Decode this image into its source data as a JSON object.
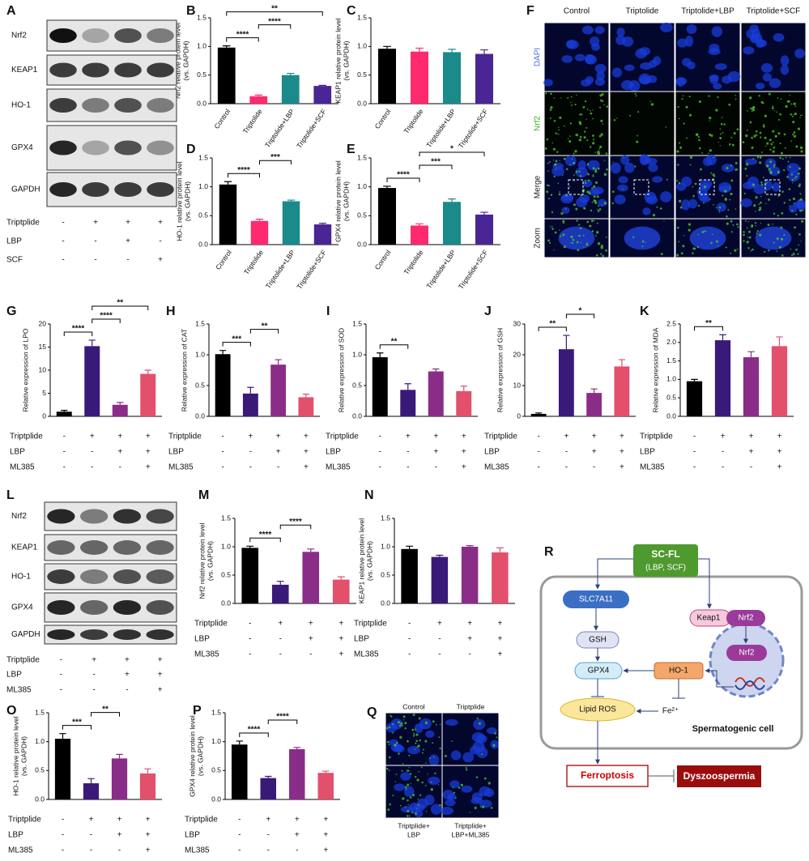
{
  "chart_data": [
    {
      "panel": "B",
      "type": "bar",
      "y_label": [
        "Nrf2 relative protein level",
        "(vs. GAPDH)"
      ],
      "categories": [
        "Control",
        "Triptolide",
        "Triptolide+LBP",
        "Triptolide+SCF"
      ],
      "values": [
        0.98,
        0.13,
        0.5,
        0.31
      ],
      "errors": [
        0.03,
        0.02,
        0.03,
        0.01
      ],
      "colors": [
        "#000000",
        "#ff2a6d",
        "#1b8a8a",
        "#4a2594"
      ],
      "ylim": [
        0,
        1.5
      ],
      "yticks": [
        {
          "value": 0,
          "label": "0.0"
        },
        0.5,
        {
          "value": 1,
          "label": "1.0"
        },
        1.5
      ],
      "significance": [
        {
          "between": [
            0,
            1
          ],
          "label": "****"
        },
        {
          "between": [
            1,
            2
          ],
          "label": "****"
        },
        {
          "between": [
            0,
            3
          ],
          "label": "**"
        }
      ]
    },
    {
      "panel": "C",
      "type": "bar",
      "y_label": [
        "KEAP1 relative protein level",
        "(vs. GAPDH)"
      ],
      "categories": [
        "Control",
        "Triptolide",
        "Triptolide+LBP",
        "Triptolide+SCF"
      ],
      "values": [
        0.96,
        0.91,
        0.9,
        0.87
      ],
      "errors": [
        0.04,
        0.06,
        0.05,
        0.07
      ],
      "colors": [
        "#000000",
        "#ff2a6d",
        "#1b8a8a",
        "#4a2594"
      ],
      "ylim": [
        0,
        1.5
      ],
      "yticks": [
        {
          "value": 0,
          "label": "0.0"
        },
        0.5,
        {
          "value": 1,
          "label": "1.0"
        },
        1.5
      ],
      "significance": []
    },
    {
      "panel": "D",
      "type": "bar",
      "y_label": [
        "HO-1 relative protein level",
        "(vs. GAPDH)"
      ],
      "categories": [
        "Control",
        "Triptolide",
        "Triptolide+LBP",
        "Triptolide+SCF"
      ],
      "values": [
        1.04,
        0.41,
        0.75,
        0.35
      ],
      "errors": [
        0.05,
        0.03,
        0.02,
        0.02
      ],
      "colors": [
        "#000000",
        "#ff2a6d",
        "#1b8a8a",
        "#4a2594"
      ],
      "ylim": [
        0,
        1.5
      ],
      "yticks": [
        {
          "value": 0,
          "label": "0.0"
        },
        0.5,
        {
          "value": 1,
          "label": "1.0"
        },
        1.5
      ],
      "significance": [
        {
          "between": [
            0,
            1
          ],
          "label": "****"
        },
        {
          "between": [
            1,
            2
          ],
          "label": "***"
        }
      ]
    },
    {
      "panel": "E",
      "type": "bar",
      "y_label": [
        "GPX4 relative protein level",
        "(vs. GAPDH)"
      ],
      "categories": [
        "Control",
        "Triptolide",
        "Triptolide+LBP",
        "Triptolide+SCF"
      ],
      "values": [
        0.98,
        0.33,
        0.74,
        0.52
      ],
      "errors": [
        0.03,
        0.03,
        0.05,
        0.04
      ],
      "colors": [
        "#000000",
        "#ff2a6d",
        "#1b8a8a",
        "#4a2594"
      ],
      "ylim": [
        0,
        1.5
      ],
      "yticks": [
        {
          "value": 0,
          "label": "0.0"
        },
        0.5,
        {
          "value": 1,
          "label": "1.0"
        },
        1.5
      ],
      "significance": [
        {
          "between": [
            0,
            1
          ],
          "label": "****"
        },
        {
          "between": [
            1,
            2
          ],
          "label": "***"
        },
        {
          "between": [
            1,
            3
          ],
          "label": "*"
        }
      ]
    },
    {
      "panel": "G",
      "type": "bar",
      "y_label": [
        "Relative expression of LPO"
      ],
      "categories": [
        null,
        null,
        null,
        null
      ],
      "values": [
        1,
        15.2,
        2.5,
        9.2
      ],
      "errors": [
        0.3,
        1.3,
        0.5,
        0.8
      ],
      "colors": [
        "#000000",
        "#3a1a78",
        "#8a2d88",
        "#e2506c"
      ],
      "ylim": [
        0,
        20
      ],
      "yticks": [
        0,
        5,
        10,
        15,
        20
      ],
      "significance": [
        {
          "between": [
            0,
            1
          ],
          "label": "****"
        },
        {
          "between": [
            1,
            2
          ],
          "label": "****"
        },
        {
          "between": [
            1,
            3
          ],
          "label": "**"
        }
      ],
      "treatments": [
        {
          "name": "Triptplide",
          "signs": [
            "-",
            "+",
            "+",
            "+"
          ]
        },
        {
          "name": "LBP",
          "signs": [
            "-",
            "-",
            "+",
            "+"
          ]
        },
        {
          "name": "ML385",
          "signs": [
            "-",
            "-",
            "-",
            "+"
          ]
        }
      ]
    },
    {
      "panel": "H",
      "type": "bar",
      "y_label": [
        "Relative expression of CAT"
      ],
      "categories": [
        null,
        null,
        null,
        null
      ],
      "values": [
        1.01,
        0.37,
        0.84,
        0.31
      ],
      "errors": [
        0.06,
        0.1,
        0.08,
        0.05
      ],
      "colors": [
        "#000000",
        "#3a1a78",
        "#8a2d88",
        "#e2506c"
      ],
      "ylim": [
        0,
        1.5
      ],
      "yticks": [
        {
          "value": 0,
          "label": "0.0"
        },
        0.5,
        {
          "value": 1,
          "label": "1.0"
        },
        1.5
      ],
      "significance": [
        {
          "between": [
            0,
            1
          ],
          "label": "***"
        },
        {
          "between": [
            1,
            2
          ],
          "label": "**"
        }
      ],
      "treatments": [
        {
          "name": "Triptplide",
          "signs": [
            "-",
            "+",
            "+",
            "+"
          ]
        },
        {
          "name": "LBP",
          "signs": [
            "-",
            "-",
            "+",
            "+"
          ]
        },
        {
          "name": "ML385",
          "signs": [
            "-",
            "-",
            "-",
            "+"
          ]
        }
      ]
    },
    {
      "panel": "I",
      "type": "bar",
      "y_label": [
        "Relative expression of SOD"
      ],
      "categories": [
        null,
        null,
        null,
        null
      ],
      "values": [
        0.96,
        0.43,
        0.73,
        0.41
      ],
      "errors": [
        0.07,
        0.1,
        0.04,
        0.08
      ],
      "colors": [
        "#000000",
        "#3a1a78",
        "#8a2d88",
        "#e2506c"
      ],
      "ylim": [
        0,
        1.5
      ],
      "yticks": [
        {
          "value": 0,
          "label": "0.0"
        },
        0.5,
        {
          "value": 1,
          "label": "1.0"
        },
        1.5
      ],
      "significance": [
        {
          "between": [
            0,
            1
          ],
          "label": "**"
        }
      ],
      "treatments": [
        {
          "name": "Triptplide",
          "signs": [
            "-",
            "+",
            "+",
            "+"
          ]
        },
        {
          "name": "LBP",
          "signs": [
            "-",
            "-",
            "+",
            "+"
          ]
        },
        {
          "name": "ML385",
          "signs": [
            "-",
            "-",
            "-",
            "+"
          ]
        }
      ]
    },
    {
      "panel": "J",
      "type": "bar",
      "y_label": [
        "Relative expression of GSH"
      ],
      "categories": [
        null,
        null,
        null,
        null
      ],
      "values": [
        0.8,
        21.8,
        7.6,
        16.2
      ],
      "errors": [
        0.3,
        4.5,
        1.3,
        2.2
      ],
      "colors": [
        "#000000",
        "#3a1a78",
        "#8a2d88",
        "#e2506c"
      ],
      "ylim": [
        0,
        30
      ],
      "yticks": [
        0,
        10,
        20,
        30
      ],
      "significance": [
        {
          "between": [
            0,
            1
          ],
          "label": "**"
        },
        {
          "between": [
            1,
            2
          ],
          "label": "*"
        }
      ],
      "treatments": [
        {
          "name": "Triptplide",
          "signs": [
            "-",
            "+",
            "+",
            "+"
          ]
        },
        {
          "name": "LBP",
          "signs": [
            "-",
            "-",
            "+",
            "+"
          ]
        },
        {
          "name": "ML385",
          "signs": [
            "-",
            "-",
            "-",
            "+"
          ]
        }
      ]
    },
    {
      "panel": "K",
      "type": "bar",
      "y_label": [
        "Relative expression of MDA"
      ],
      "categories": [
        null,
        null,
        null,
        null
      ],
      "values": [
        0.95,
        2.06,
        1.6,
        1.9
      ],
      "errors": [
        0.05,
        0.15,
        0.15,
        0.25
      ],
      "colors": [
        "#000000",
        "#3a1a78",
        "#8a2d88",
        "#e2506c"
      ],
      "ylim": [
        0,
        2.5
      ],
      "yticks": [
        {
          "value": 0,
          "label": "0.0"
        },
        0.5,
        {
          "value": 1,
          "label": "1.0"
        },
        1.5,
        {
          "value": 2,
          "label": "2.0"
        },
        2.5
      ],
      "significance": [
        {
          "between": [
            0,
            1
          ],
          "label": "**"
        }
      ],
      "treatments": [
        {
          "name": "Triptplide",
          "signs": [
            "-",
            "+",
            "+",
            "+"
          ]
        },
        {
          "name": "LBP",
          "signs": [
            "-",
            "-",
            "+",
            "+"
          ]
        },
        {
          "name": "ML385",
          "signs": [
            "-",
            "-",
            "-",
            "+"
          ]
        }
      ]
    },
    {
      "panel": "M",
      "type": "bar",
      "y_label": [
        "Nrf2 relative protein level",
        "(vs. GAPDH)"
      ],
      "categories": [
        null,
        null,
        null,
        null
      ],
      "values": [
        0.98,
        0.33,
        0.91,
        0.42
      ],
      "errors": [
        0.03,
        0.06,
        0.05,
        0.05
      ],
      "colors": [
        "#000000",
        "#3a1a78",
        "#8a2d88",
        "#e2506c"
      ],
      "ylim": [
        0,
        1.5
      ],
      "yticks": [
        {
          "value": 0,
          "label": "0.0"
        },
        0.5,
        {
          "value": 1,
          "label": "1.0"
        },
        1.5
      ],
      "significance": [
        {
          "between": [
            0,
            1
          ],
          "label": "****"
        },
        {
          "between": [
            1,
            2
          ],
          "label": "****"
        }
      ],
      "treatments": [
        {
          "name": "Triptplide",
          "signs": [
            "-",
            "+",
            "+",
            "+"
          ]
        },
        {
          "name": "LBP",
          "signs": [
            "-",
            "-",
            "+",
            "+"
          ]
        },
        {
          "name": "ML385",
          "signs": [
            "-",
            "-",
            "-",
            "+"
          ]
        }
      ]
    },
    {
      "panel": "N",
      "type": "bar",
      "y_label": [
        "KEAP1 relative protein level",
        "(vs. GAPDH)"
      ],
      "categories": [
        null,
        null,
        null,
        null
      ],
      "values": [
        0.96,
        0.82,
        1.0,
        0.9
      ],
      "errors": [
        0.05,
        0.03,
        0.02,
        0.08
      ],
      "colors": [
        "#000000",
        "#3a1a78",
        "#8a2d88",
        "#e2506c"
      ],
      "ylim": [
        0,
        1.5
      ],
      "yticks": [
        {
          "value": 0,
          "label": "0.0"
        },
        0.5,
        {
          "value": 1,
          "label": "1.0"
        },
        1.5
      ],
      "significance": [],
      "treatments": [
        {
          "name": "Triptplide",
          "signs": [
            "-",
            "+",
            "+",
            "+"
          ]
        },
        {
          "name": "LBP",
          "signs": [
            "-",
            "-",
            "+",
            "+"
          ]
        },
        {
          "name": "ML385",
          "signs": [
            "-",
            "-",
            "-",
            "+"
          ]
        }
      ]
    },
    {
      "panel": "O",
      "type": "bar",
      "y_label": [
        "HO-1 relative protein level",
        "(vs. GAPDH)"
      ],
      "categories": [
        null,
        null,
        null,
        null
      ],
      "values": [
        1.05,
        0.28,
        0.71,
        0.45
      ],
      "errors": [
        0.09,
        0.08,
        0.07,
        0.08
      ],
      "colors": [
        "#000000",
        "#3a1a78",
        "#8a2d88",
        "#e2506c"
      ],
      "ylim": [
        0,
        1.5
      ],
      "yticks": [
        {
          "value": 0,
          "label": "0.0"
        },
        0.5,
        {
          "value": 1,
          "label": "1.0"
        },
        1.5
      ],
      "significance": [
        {
          "between": [
            0,
            1
          ],
          "label": "***"
        },
        {
          "between": [
            1,
            2
          ],
          "label": "**"
        }
      ],
      "treatments": [
        {
          "name": "Triptplide",
          "signs": [
            "-",
            "+",
            "+",
            "+"
          ]
        },
        {
          "name": "LBP",
          "signs": [
            "-",
            "-",
            "+",
            "+"
          ]
        },
        {
          "name": "ML385",
          "signs": [
            "-",
            "-",
            "-",
            "+"
          ]
        }
      ]
    },
    {
      "panel": "P",
      "type": "bar",
      "y_label": [
        "GPX4 relative protein level",
        "(vs. GAPDH)"
      ],
      "categories": [
        null,
        null,
        null,
        null
      ],
      "values": [
        0.95,
        0.37,
        0.87,
        0.46
      ],
      "errors": [
        0.06,
        0.03,
        0.03,
        0.03
      ],
      "colors": [
        "#000000",
        "#3a1a78",
        "#8a2d88",
        "#e2506c"
      ],
      "ylim": [
        0,
        1.5
      ],
      "yticks": [
        {
          "value": 0,
          "label": "0.0"
        },
        0.5,
        {
          "value": 1,
          "label": "1.0"
        },
        1.5
      ],
      "significance": [
        {
          "between": [
            0,
            1
          ],
          "label": "****"
        },
        {
          "between": [
            1,
            2
          ],
          "label": "****"
        }
      ],
      "treatments": [
        {
          "name": "Triptplide",
          "signs": [
            "-",
            "+",
            "+",
            "+"
          ]
        },
        {
          "name": "LBP",
          "signs": [
            "-",
            "-",
            "+",
            "+"
          ]
        },
        {
          "name": "ML385",
          "signs": [
            "-",
            "-",
            "-",
            "+"
          ]
        }
      ]
    }
  ],
  "blots": [
    {
      "panel": "A",
      "proteins": [
        "Nrf2",
        "KEAP1",
        "HO-1",
        "GPX4",
        "GAPDH"
      ],
      "treatments": [
        {
          "name": "Triptplide",
          "signs": [
            "-",
            "+",
            "+",
            "+"
          ]
        },
        {
          "name": "LBP",
          "signs": [
            "-",
            "-",
            "+",
            "-"
          ]
        },
        {
          "name": "SCF",
          "signs": [
            "-",
            "-",
            "-",
            "+"
          ]
        }
      ]
    },
    {
      "panel": "L",
      "proteins": [
        "Nrf2",
        "KEAP1",
        "HO-1",
        "GPX4",
        "GAPDH"
      ],
      "treatments": [
        {
          "name": "Triptplide",
          "signs": [
            "-",
            "+",
            "+",
            "+"
          ]
        },
        {
          "name": "LBP",
          "signs": [
            "-",
            "-",
            "+",
            "+"
          ]
        },
        {
          "name": "ML385",
          "signs": [
            "-",
            "-",
            "-",
            "+"
          ]
        }
      ]
    }
  ],
  "images": [
    {
      "panel": "F",
      "columns": [
        "Control",
        "Triptolide",
        "Triptolide+LBP",
        "Triptolide+SCF"
      ],
      "rows": [
        "DAPI",
        "Nrf2",
        "Merge",
        "Zoom"
      ]
    },
    {
      "panel": "Q",
      "top_labels": [
        "Control",
        "Triptplide"
      ],
      "bottom_labels": [
        [
          "Triptplide+",
          "LBP"
        ],
        [
          "Triptplide+",
          "LBP+ML385"
        ]
      ]
    }
  ],
  "diagram": {
    "panel": "R",
    "sc_fl": "SC-FL",
    "sc_fl_sub": "(LBP, SCF)",
    "slc7a11": "SLC7A11",
    "keap1": "Keap1",
    "nrf2": "Nrf2",
    "nrf2_nucleus": "Nrf2",
    "gsh": "GSH",
    "gpx4": "GPX4",
    "ho1": "HO-1",
    "lipid_ros": "Lipid ROS",
    "fe": "Fe²⁺",
    "cell": "Spermatogenic cell",
    "ferroptosis": "Ferroptosis",
    "dyszoospermia": "Dyszoospermia"
  }
}
